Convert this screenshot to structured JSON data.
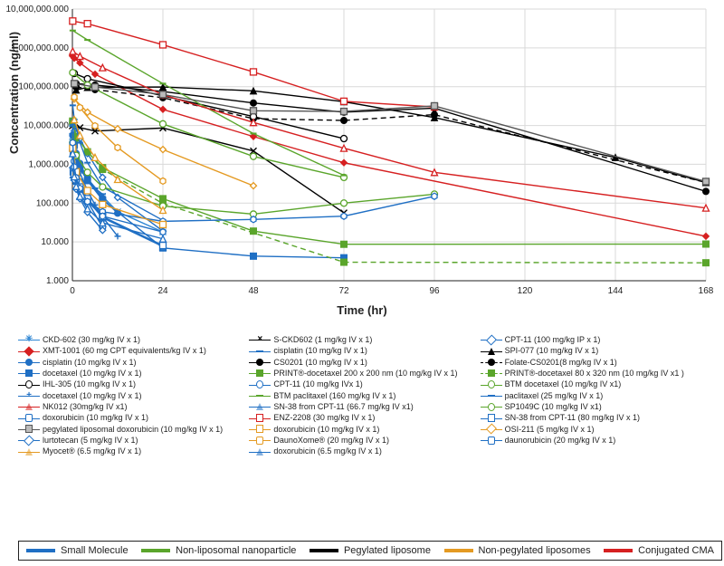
{
  "axes": {
    "xlabel": "Time (hr)",
    "ylabel": "Concentration (ng/ml)",
    "xmin": 0,
    "xmax": 168,
    "xticks": [
      0,
      24,
      48,
      72,
      96,
      120,
      144,
      168
    ],
    "ymin_log": 0,
    "ymax_log": 7,
    "yticks": [
      {
        "exp": 0,
        "label": "1.000"
      },
      {
        "exp": 1,
        "label": "10.000"
      },
      {
        "exp": 2,
        "label": "100.000"
      },
      {
        "exp": 3,
        "label": "1,000.000"
      },
      {
        "exp": 4,
        "label": "10,000.000"
      },
      {
        "exp": 5,
        "label": "100,000.000"
      },
      {
        "exp": 6,
        "label": "1,000,000.000"
      },
      {
        "exp": 7,
        "label": "10,000,000.000"
      }
    ],
    "grid_color": "#d9d9d9",
    "background": "#ffffff",
    "axis_color": "#222222",
    "label_fontsize": 13,
    "tick_fontsize": 10
  },
  "category_legend": [
    {
      "label": "Small Molecule",
      "color": "#1f6fc4"
    },
    {
      "label": "Non-liposomal nanoparticle",
      "color": "#5aa52b"
    },
    {
      "label": "Pegylated liposome",
      "color": "#000000"
    },
    {
      "label": "Non-pegylated liposomes",
      "color": "#e49a22"
    },
    {
      "label": "Conjugated CMA",
      "color": "#d62021"
    }
  ],
  "series": [
    {
      "label": "CKD-602 (30 mg/kg IV x 1)",
      "color": "#2e86d4",
      "marker": "asterisk",
      "dash": "solid",
      "points": [
        [
          0,
          5200
        ],
        [
          0.25,
          3800
        ],
        [
          0.5,
          2400
        ],
        [
          1,
          1700
        ],
        [
          2,
          900
        ],
        [
          4,
          430
        ],
        [
          8,
          150
        ],
        [
          12,
          60
        ],
        [
          24,
          18
        ]
      ]
    },
    {
      "label": "S-CKD602 (1 mg/kg IV x 1)",
      "color": "#000000",
      "marker": "x",
      "dash": "solid",
      "points": [
        [
          0,
          9800
        ],
        [
          2,
          8800
        ],
        [
          6,
          7200
        ],
        [
          24,
          8600
        ],
        [
          48,
          2200
        ],
        [
          72,
          56
        ]
      ]
    },
    {
      "label": "CPT-11 (100 mg/kg IP x 1)",
      "color": "#1f6fc4",
      "marker": "diamond",
      "dash": "solid",
      "points": [
        [
          0.25,
          5200
        ],
        [
          0.5,
          7200
        ],
        [
          1,
          6100
        ],
        [
          2,
          4600
        ],
        [
          4,
          1900
        ],
        [
          8,
          460
        ],
        [
          12,
          140
        ],
        [
          24,
          19
        ]
      ]
    },
    {
      "label": "XMT-1001 (60 mg CPT equivalents/kg IV x 1)",
      "color": "#d62021",
      "marker": "diamond-filled",
      "dash": "solid",
      "points": [
        [
          0,
          620000
        ],
        [
          0.5,
          540000
        ],
        [
          2,
          410000
        ],
        [
          6,
          210000
        ],
        [
          24,
          26000
        ],
        [
          48,
          5200
        ],
        [
          72,
          1100
        ],
        [
          168,
          14
        ]
      ]
    },
    {
      "label": "cisplatin (10 mg/kg IV x 1)",
      "color": "#1f6fc4",
      "marker": "dash",
      "dash": "solid",
      "points": [
        [
          0.083,
          6100
        ],
        [
          0.25,
          4100
        ],
        [
          0.5,
          2600
        ],
        [
          1,
          1700
        ],
        [
          2,
          940
        ],
        [
          4,
          420
        ],
        [
          6,
          240
        ],
        [
          8,
          170
        ]
      ]
    },
    {
      "label": "SPI-077 (10 mg/kg IV x 1)",
      "color": "#000000",
      "marker": "triangle-filled",
      "dash": "solid",
      "points": [
        [
          1,
          82000
        ],
        [
          4,
          96000
        ],
        [
          24,
          98000
        ],
        [
          48,
          78000
        ],
        [
          72,
          41000
        ],
        [
          96,
          16000
        ],
        [
          144,
          1500
        ],
        [
          168,
          340
        ]
      ]
    },
    {
      "label": "cisplatin  (10 mg/kg IV x 1)",
      "color": "#1f6fc4",
      "marker": "circle-filled",
      "dash": "solid",
      "points": [
        [
          0.083,
          5600
        ],
        [
          0.5,
          3200
        ],
        [
          1,
          1900
        ],
        [
          2,
          1050
        ],
        [
          4,
          430
        ],
        [
          8,
          130
        ],
        [
          12,
          55
        ]
      ]
    },
    {
      "label": "CS0201 (10 mg/kg IV x 1)",
      "color": "#000000",
      "marker": "circle-filled",
      "dash": "solid",
      "points": [
        [
          1,
          120000
        ],
        [
          6,
          110000
        ],
        [
          24,
          75000
        ],
        [
          48,
          38000
        ],
        [
          72,
          22000
        ],
        [
          96,
          28000
        ],
        [
          168,
          200
        ]
      ]
    },
    {
      "label": "Folate-CS0201(8 mg/kg IV x 1)",
      "color": "#000000",
      "marker": "circle-filled",
      "dash": "dashed",
      "points": [
        [
          1,
          98000
        ],
        [
          6,
          84000
        ],
        [
          24,
          52000
        ],
        [
          48,
          15000
        ],
        [
          72,
          13500
        ],
        [
          96,
          19000
        ],
        [
          168,
          340
        ]
      ]
    },
    {
      "label": "docetaxel (10 mg/kg IV x 1)",
      "color": "#1f6fc4",
      "marker": "square-filled",
      "dash": "solid",
      "points": [
        [
          0.083,
          11400
        ],
        [
          0.5,
          3200
        ],
        [
          1,
          1500
        ],
        [
          2,
          780
        ],
        [
          4,
          380
        ],
        [
          8,
          120
        ],
        [
          24,
          7
        ],
        [
          48,
          4.3
        ],
        [
          72,
          3.9
        ]
      ]
    },
    {
      "label": "PRINT®-docetaxel 200 x 200 nm (10 mg/kg IV x 1)",
      "color": "#5aa52b",
      "marker": "square-filled",
      "dash": "solid",
      "points": [
        [
          0.083,
          13000
        ],
        [
          1,
          5200
        ],
        [
          4,
          2100
        ],
        [
          8,
          820
        ],
        [
          24,
          130
        ],
        [
          48,
          19
        ],
        [
          72,
          8.7
        ],
        [
          168,
          8.8
        ]
      ]
    },
    {
      "label": "PRINT®-docetaxel 80 x 320 nm (10 mg/kg IV x1 )",
      "color": "#5aa52b",
      "marker": "square-filled",
      "dash": "dashed",
      "points": [
        [
          0.083,
          12500
        ],
        [
          1,
          4800
        ],
        [
          8,
          740
        ],
        [
          24,
          98
        ],
        [
          72,
          3.0
        ],
        [
          168,
          2.9
        ]
      ]
    },
    {
      "label": "IHL-305  (10 mg/kg  IV x 1)",
      "color": "#000000",
      "marker": "circle-open",
      "dash": "solid",
      "points": [
        [
          0.5,
          220000
        ],
        [
          4,
          160000
        ],
        [
          24,
          58000
        ],
        [
          48,
          17000
        ],
        [
          72,
          4600
        ]
      ]
    },
    {
      "label": "CPT-11 (10 mg/kg IVx 1)",
      "color": "#1f6fc4",
      "marker": "circle-open",
      "dash": "solid",
      "points": [
        [
          0.083,
          2300
        ],
        [
          0.25,
          1800
        ],
        [
          0.5,
          1200
        ],
        [
          1,
          760
        ],
        [
          2,
          350
        ],
        [
          4,
          110
        ],
        [
          8,
          24
        ]
      ]
    },
    {
      "label": "BTM docetaxel (10 mg/kg IV x1)",
      "color": "#5aa52b",
      "marker": "circle-open",
      "dash": "solid",
      "points": [
        [
          0.083,
          230000
        ],
        [
          4,
          110000
        ],
        [
          24,
          11000
        ],
        [
          48,
          1600
        ],
        [
          72,
          460
        ]
      ]
    },
    {
      "label": "docetaxel  (10 mg/kg IV x 1)",
      "color": "#1f6fc4",
      "marker": "plus",
      "dash": "solid",
      "points": [
        [
          0.083,
          10500
        ],
        [
          0.5,
          2900
        ],
        [
          1,
          1300
        ],
        [
          2,
          600
        ],
        [
          4,
          210
        ],
        [
          6,
          90
        ],
        [
          8,
          44
        ],
        [
          12,
          14
        ]
      ]
    },
    {
      "label": "BTM paclitaxel (160 mg/kg IV x 1)",
      "color": "#5aa52b",
      "marker": "dash",
      "dash": "solid",
      "points": [
        [
          0.083,
          2800000
        ],
        [
          4,
          1600000
        ],
        [
          24,
          120000
        ],
        [
          48,
          6200
        ],
        [
          72,
          520
        ]
      ]
    },
    {
      "label": "paclitaxel (25 mg/kg IV x 1)",
      "color": "#1f6fc4",
      "marker": "dash",
      "dash": "solid",
      "points": [
        [
          0.083,
          33000
        ],
        [
          0.5,
          14200
        ],
        [
          1,
          8200
        ],
        [
          2,
          3600
        ],
        [
          4,
          1100
        ],
        [
          8,
          260
        ],
        [
          24,
          36
        ]
      ]
    },
    {
      "label": "NK012 (30mg/kg IV x1)",
      "color": "#d62021",
      "marker": "triangle-open",
      "dash": "solid",
      "points": [
        [
          0.083,
          820000
        ],
        [
          2,
          610000
        ],
        [
          8,
          310000
        ],
        [
          24,
          62000
        ],
        [
          48,
          12000
        ],
        [
          72,
          2600
        ],
        [
          96,
          620
        ],
        [
          168,
          75
        ]
      ]
    },
    {
      "label": "SN-38 from CPT-11 (66.7 mg/kg IV x1)",
      "color": "#1f6fc4",
      "marker": "triangle-open",
      "dash": "solid",
      "points": [
        [
          0.25,
          540
        ],
        [
          0.5,
          480
        ],
        [
          1,
          370
        ],
        [
          2,
          230
        ],
        [
          4,
          120
        ],
        [
          8,
          42
        ],
        [
          24,
          7.6
        ]
      ]
    },
    {
      "label": "SP1049C (10 mg/kg IV x1)",
      "color": "#5aa52b",
      "marker": "circle-open",
      "dash": "solid",
      "points": [
        [
          0.083,
          3600
        ],
        [
          1,
          1700
        ],
        [
          4,
          620
        ],
        [
          8,
          260
        ],
        [
          24,
          84
        ],
        [
          48,
          52
        ],
        [
          72,
          100
        ],
        [
          96,
          170
        ]
      ]
    },
    {
      "label": "doxorubicin (10 mg/kg IV x 1)",
      "color": "#1f6fc4",
      "marker": "hex-open",
      "dash": "solid",
      "points": [
        [
          0.083,
          3200
        ],
        [
          0.5,
          740
        ],
        [
          1,
          410
        ],
        [
          2,
          230
        ],
        [
          4,
          120
        ],
        [
          8,
          60
        ],
        [
          24,
          34
        ],
        [
          48,
          38
        ],
        [
          72,
          46
        ],
        [
          96,
          150
        ]
      ]
    },
    {
      "label": "ENZ-2208 (30 mg/kg IV x 1)",
      "color": "#d62021",
      "marker": "square-open",
      "dash": "solid",
      "points": [
        [
          0.083,
          4900000
        ],
        [
          4,
          4200000
        ],
        [
          24,
          1200000
        ],
        [
          48,
          240000
        ],
        [
          72,
          42000
        ],
        [
          96,
          30000
        ]
      ]
    },
    {
      "label": "SN-38 from CPT-11 (80 mg/kg IV x 1)",
      "color": "#1f6fc4",
      "marker": "square-open",
      "dash": "solid",
      "points": [
        [
          0.25,
          640
        ],
        [
          0.5,
          560
        ],
        [
          1,
          420
        ],
        [
          2,
          260
        ],
        [
          4,
          130
        ],
        [
          8,
          45
        ],
        [
          24,
          8.1
        ]
      ]
    },
    {
      "label": "pegylated liposomal doxorubicin (10 mg/kg IV x 1)",
      "color": "#555555",
      "marker": "square-dots",
      "dash": "solid",
      "points": [
        [
          0.5,
          120000
        ],
        [
          6,
          98000
        ],
        [
          24,
          63000
        ],
        [
          48,
          24000
        ],
        [
          72,
          23000
        ],
        [
          96,
          32000
        ],
        [
          168,
          360
        ]
      ]
    },
    {
      "label": "doxorubicin  (10 mg/kg IV x 1)",
      "color": "#e49a22",
      "marker": "square-open",
      "dash": "solid",
      "points": [
        [
          0.083,
          2600
        ],
        [
          1,
          640
        ],
        [
          4,
          210
        ],
        [
          8,
          92
        ],
        [
          24,
          28
        ]
      ]
    },
    {
      "label": "OSI-211 (5 mg/kg IV x 1)",
      "color": "#e49a22",
      "marker": "diamond-open",
      "dash": "solid",
      "points": [
        [
          0.5,
          48000
        ],
        [
          4,
          22000
        ],
        [
          12,
          8200
        ],
        [
          24,
          2400
        ],
        [
          48,
          280
        ]
      ]
    },
    {
      "label": "lurtotecan (5 mg/kg IV x 1)",
      "color": "#1f6fc4",
      "marker": "diamond-open",
      "dash": "solid",
      "points": [
        [
          0.083,
          820
        ],
        [
          0.5,
          390
        ],
        [
          1,
          230
        ],
        [
          2,
          130
        ],
        [
          4,
          58
        ],
        [
          8,
          20
        ]
      ]
    },
    {
      "label": "DaunoXome® (20 mg/kg IV x 1)",
      "color": "#e49a22",
      "marker": "hex-open",
      "dash": "solid",
      "points": [
        [
          0.5,
          54000
        ],
        [
          2,
          29000
        ],
        [
          6,
          9800
        ],
        [
          12,
          2700
        ],
        [
          24,
          370
        ]
      ]
    },
    {
      "label": "daunorubicin (20 mg/kg IV x 1)",
      "color": "#1f6fc4",
      "marker": "hex-open",
      "dash": "solid",
      "points": [
        [
          0.083,
          3600
        ],
        [
          0.5,
          860
        ],
        [
          1,
          450
        ],
        [
          2,
          240
        ],
        [
          4,
          110
        ],
        [
          8,
          46
        ],
        [
          24,
          18
        ]
      ]
    },
    {
      "label": "Myocet® (6.5 mg/kg IV x 1)",
      "color": "#e49a22",
      "marker": "triangle-open",
      "dash": "solid",
      "points": [
        [
          0.5,
          14200
        ],
        [
          2,
          5600
        ],
        [
          6,
          1500
        ],
        [
          12,
          410
        ],
        [
          24,
          66
        ]
      ]
    },
    {
      "label": "doxorubicin (6.5 mg/kg IV x 1)",
      "color": "#1f6fc4",
      "marker": "triangle-open",
      "dash": "solid",
      "points": [
        [
          0.083,
          1900
        ],
        [
          0.5,
          480
        ],
        [
          1,
          270
        ],
        [
          2,
          150
        ],
        [
          4,
          72
        ],
        [
          8,
          31
        ],
        [
          24,
          12
        ]
      ]
    }
  ]
}
